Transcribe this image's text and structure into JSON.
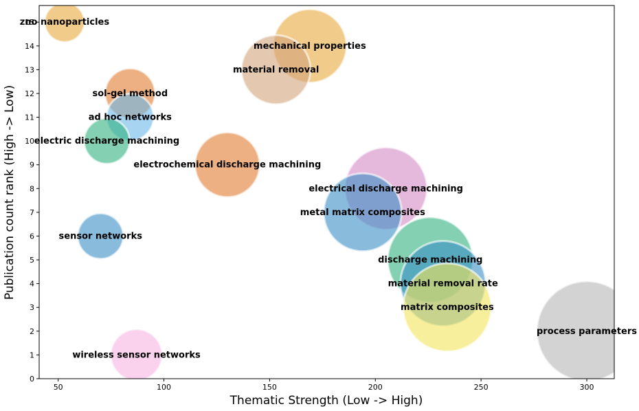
{
  "chart_data": {
    "type": "scatter",
    "title": "",
    "xlabel": "Thematic Strength (Low -> High)",
    "ylabel": "Publication count rank (High -> Low)",
    "xlim": [
      41,
      313
    ],
    "ylim": [
      0,
      15.7
    ],
    "xticks": [
      50,
      100,
      150,
      200,
      250,
      300
    ],
    "yticks": [
      0,
      1,
      2,
      3,
      4,
      5,
      6,
      7,
      8,
      9,
      10,
      11,
      12,
      13,
      14,
      15
    ],
    "grid": false,
    "legend": "none",
    "points": [
      {
        "label": "zno nanoparticles",
        "x": 53,
        "y": 15,
        "size": 27,
        "color": "#e6a83c"
      },
      {
        "label": "mechanical properties",
        "x": 169,
        "y": 14,
        "size": 50,
        "color": "#e6a83c"
      },
      {
        "label": "material removal",
        "x": 153,
        "y": 13,
        "size": 47,
        "color": "#d2a47c"
      },
      {
        "label": "sol-gel method",
        "x": 84,
        "y": 12,
        "size": 34,
        "color": "#e07c30"
      },
      {
        "label": "ad hoc networks",
        "x": 84,
        "y": 11,
        "size": 32,
        "color": "#6bb8e8"
      },
      {
        "label": "electric discharge machining",
        "x": 73,
        "y": 10,
        "size": 31,
        "color": "#30b080"
      },
      {
        "label": "electrochemical discharge machining",
        "x": 130,
        "y": 9,
        "size": 44,
        "color": "#e07c30"
      },
      {
        "label": "electrical discharge machining",
        "x": 205,
        "y": 8,
        "size": 56,
        "color": "#d48ac4"
      },
      {
        "label": "metal matrix composites",
        "x": 194,
        "y": 7,
        "size": 53,
        "color": "#3b8fc4"
      },
      {
        "label": "sensor networks",
        "x": 70,
        "y": 6,
        "size": 31,
        "color": "#3b8fc4"
      },
      {
        "label": "discharge machining",
        "x": 226,
        "y": 5,
        "size": 58,
        "color": "#30b080"
      },
      {
        "label": "material removal rate",
        "x": 232,
        "y": 4,
        "size": 58,
        "color": "#3b8fc4"
      },
      {
        "label": "matrix composites",
        "x": 234,
        "y": 3,
        "size": 60,
        "color": "#f2e55a"
      },
      {
        "label": "process parameters",
        "x": 300,
        "y": 2,
        "size": 68,
        "color": "#b5b5b5"
      },
      {
        "label": "wireless sensor networks",
        "x": 87,
        "y": 1,
        "size": 35,
        "color": "#f7b4e2"
      }
    ]
  }
}
